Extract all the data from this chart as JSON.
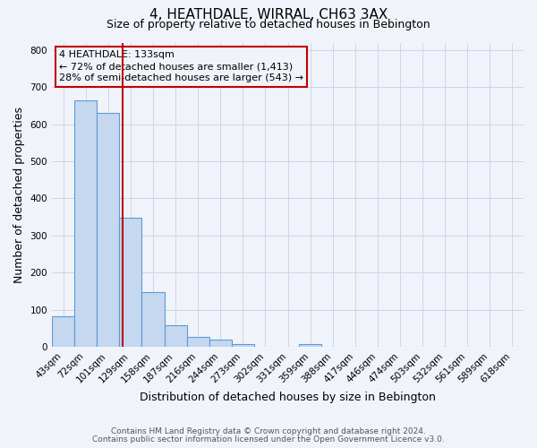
{
  "title": "4, HEATHDALE, WIRRAL, CH63 3AX",
  "subtitle": "Size of property relative to detached houses in Bebington",
  "xlabel": "Distribution of detached houses by size in Bebington",
  "ylabel": "Number of detached properties",
  "bar_labels": [
    "43sqm",
    "72sqm",
    "101sqm",
    "129sqm",
    "158sqm",
    "187sqm",
    "216sqm",
    "244sqm",
    "273sqm",
    "302sqm",
    "331sqm",
    "359sqm",
    "388sqm",
    "417sqm",
    "446sqm",
    "474sqm",
    "503sqm",
    "532sqm",
    "561sqm",
    "589sqm",
    "618sqm"
  ],
  "bar_values": [
    83,
    663,
    630,
    348,
    148,
    57,
    27,
    18,
    8,
    0,
    0,
    7,
    0,
    0,
    0,
    0,
    0,
    0,
    0,
    0,
    0
  ],
  "bar_color": "#c5d8f0",
  "bar_edge_color": "#5b9bd5",
  "property_line_label": "4 HEATHDALE: 133sqm",
  "annotation_line1": "← 72% of detached houses are smaller (1,413)",
  "annotation_line2": "28% of semi-detached houses are larger (543) →",
  "annotation_box_edge": "#c00000",
  "red_line_x": 2.64,
  "ylim": [
    0,
    820
  ],
  "footnote1": "Contains HM Land Registry data © Crown copyright and database right 2024.",
  "footnote2": "Contains public sector information licensed under the Open Government Licence v3.0.",
  "background_color": "#f0f4fa",
  "grid_color": "#cdd5e8",
  "title_fontsize": 11,
  "subtitle_fontsize": 9,
  "axis_label_fontsize": 9,
  "tick_fontsize": 7.5,
  "annotation_fontsize": 8,
  "footnote_fontsize": 6.5
}
